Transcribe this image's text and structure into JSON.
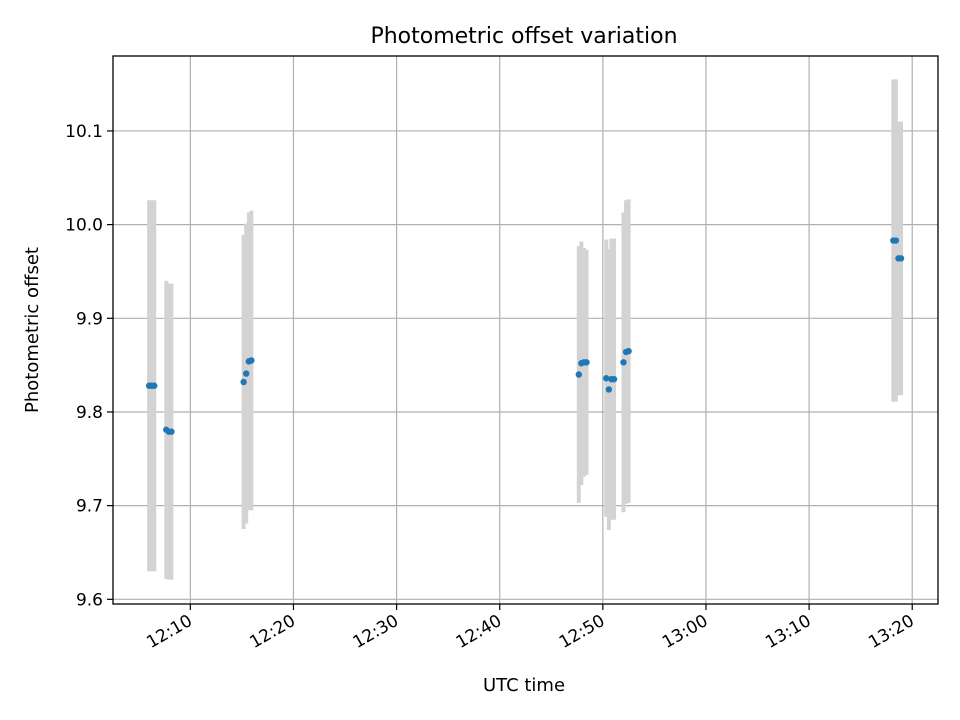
{
  "chart_data": {
    "type": "scatter",
    "title": "Photometric offset variation",
    "xlabel": "UTC time",
    "ylabel": "Photometric offset",
    "xlim": [
      "12:02:30",
      "13:22:30"
    ],
    "ylim": [
      9.595,
      10.18
    ],
    "x_tick_labels": [
      "12:10",
      "12:20",
      "12:30",
      "12:40",
      "12:50",
      "13:00",
      "13:10",
      "13:20"
    ],
    "y_tick_labels": [
      "9.6",
      "9.7",
      "9.8",
      "9.9",
      "10.0",
      "10.1"
    ],
    "y_tick_values": [
      9.6,
      9.7,
      9.8,
      9.9,
      10.0,
      10.1
    ],
    "grid": true,
    "colors": {
      "points": "#1f77b4",
      "error_bars": "#d3d3d3",
      "grid": "#b0b0b0"
    },
    "series": [
      {
        "points": [
          {
            "t": "12:06:00",
            "y": 9.828,
            "yerr": 0.198
          },
          {
            "t": "12:06:15",
            "y": 9.828,
            "yerr": 0.198
          },
          {
            "t": "12:06:30",
            "y": 9.828,
            "yerr": 0.198
          },
          {
            "t": "12:07:40",
            "y": 9.781,
            "yerr": 0.159
          },
          {
            "t": "12:07:55",
            "y": 9.779,
            "yerr": 0.158
          },
          {
            "t": "12:08:10",
            "y": 9.779,
            "yerr": 0.158
          },
          {
            "t": "12:15:10",
            "y": 9.832,
            "yerr": 0.157
          },
          {
            "t": "12:15:25",
            "y": 9.841,
            "yerr": 0.16
          },
          {
            "t": "12:15:40",
            "y": 9.854,
            "yerr": 0.159
          },
          {
            "t": "12:15:55",
            "y": 9.855,
            "yerr": 0.16
          },
          {
            "t": "12:47:40",
            "y": 9.84,
            "yerr": 0.137
          },
          {
            "t": "12:47:55",
            "y": 9.852,
            "yerr": 0.13
          },
          {
            "t": "12:48:10",
            "y": 9.853,
            "yerr": 0.122
          },
          {
            "t": "12:48:25",
            "y": 9.853,
            "yerr": 0.12
          },
          {
            "t": "12:50:20",
            "y": 9.836,
            "yerr": 0.148
          },
          {
            "t": "12:50:35",
            "y": 9.824,
            "yerr": 0.15
          },
          {
            "t": "12:50:50",
            "y": 9.835,
            "yerr": 0.15
          },
          {
            "t": "12:51:05",
            "y": 9.835,
            "yerr": 0.15
          },
          {
            "t": "12:52:00",
            "y": 9.853,
            "yerr": 0.16
          },
          {
            "t": "12:52:15",
            "y": 9.864,
            "yerr": 0.162
          },
          {
            "t": "12:52:30",
            "y": 9.865,
            "yerr": 0.162
          },
          {
            "t": "13:18:10",
            "y": 9.983,
            "yerr": 0.172
          },
          {
            "t": "13:18:25",
            "y": 9.983,
            "yerr": 0.172
          },
          {
            "t": "13:18:40",
            "y": 9.964,
            "yerr": 0.146
          },
          {
            "t": "13:18:55",
            "y": 9.964,
            "yerr": 0.146
          }
        ]
      }
    ]
  }
}
